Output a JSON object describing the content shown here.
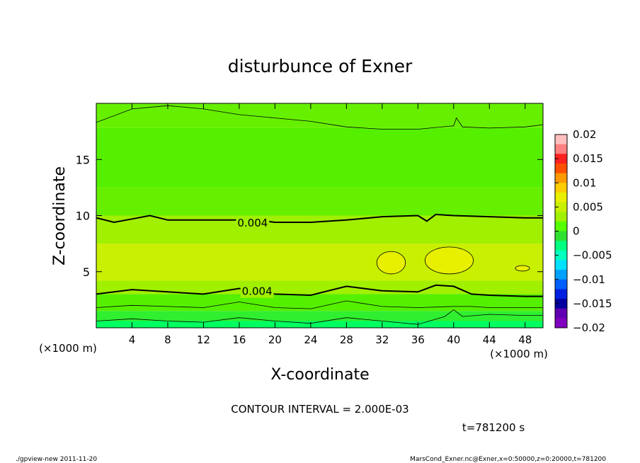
{
  "chart_data": {
    "type": "heatmap",
    "title": "disturbunce of Exner",
    "xlabel": "X-coordinate",
    "ylabel": "Z-coordinate",
    "x_unit_left": "(×1000 m)",
    "x_unit_right": "(×1000 m)",
    "xlim": [
      0,
      50
    ],
    "ylim": [
      0,
      20
    ],
    "x_ticks": [
      4,
      8,
      12,
      16,
      20,
      24,
      28,
      32,
      36,
      40,
      44,
      48
    ],
    "y_ticks": [
      5,
      10,
      15
    ],
    "contour_interval_text": "CONTOUR INTERVAL = 2.000E-03",
    "time_text": "t=781200 s",
    "contour_labels": [
      {
        "text": "0.004",
        "x": 17.5,
        "y": 9.4
      },
      {
        "text": "0.004",
        "x": 18.0,
        "y": 3.3
      }
    ],
    "colorbar": {
      "ticks": [
        "0.02",
        "0.015",
        "0.01",
        "0.005",
        "0",
        "−0.005",
        "−0.01",
        "−0.015",
        "−0.02"
      ],
      "colors": [
        "#ffc0c0",
        "#ff8080",
        "#ff2020",
        "#ff5000",
        "#ff9900",
        "#ffcc00",
        "#e8f000",
        "#c8f000",
        "#a0f000",
        "#55ff00",
        "#30e030",
        "#00ff80",
        "#00ffc0",
        "#00e0ff",
        "#00a0ff",
        "#0060ff",
        "#0020e0",
        "#0000a0",
        "#6000b0",
        "#8000c0"
      ]
    },
    "bands": [
      {
        "z": [
          0,
          0.6
        ],
        "color": "#00ff60"
      },
      {
        "z": [
          0.6,
          1.5
        ],
        "color": "#30ee30"
      },
      {
        "z": [
          1.5,
          3.0
        ],
        "color": "#55f000"
      },
      {
        "z": [
          3.0,
          4.2
        ],
        "color": "#a0f000"
      },
      {
        "z": [
          4.2,
          7.5
        ],
        "color": "#c8f000"
      },
      {
        "z": [
          7.5,
          10.0
        ],
        "color": "#a0f000"
      },
      {
        "z": [
          10.0,
          12.5
        ],
        "color": "#66f000"
      },
      {
        "z": [
          12.5,
          17.8
        ],
        "color": "#55f000"
      },
      {
        "z": [
          17.8,
          20
        ],
        "color": "#66f000"
      }
    ],
    "contours": [
      {
        "level": 0.004,
        "x": [
          0,
          2,
          4,
          6,
          8,
          10,
          12,
          14,
          16,
          18,
          20,
          24,
          28,
          32,
          36,
          37,
          38,
          40,
          44,
          48,
          50
        ],
        "z": [
          9.8,
          9.4,
          9.7,
          10.0,
          9.6,
          9.6,
          9.6,
          9.6,
          9.6,
          9.6,
          9.4,
          9.4,
          9.6,
          9.9,
          10.0,
          9.5,
          10.1,
          10.0,
          9.9,
          9.8,
          9.8
        ],
        "bold": true
      },
      {
        "level": 0.004,
        "x": [
          0,
          4,
          8,
          12,
          16,
          20,
          24,
          28,
          32,
          36,
          38,
          40,
          42,
          44,
          48,
          50
        ],
        "z": [
          3.0,
          3.4,
          3.2,
          3.0,
          3.5,
          3.0,
          2.9,
          3.7,
          3.3,
          3.2,
          3.8,
          3.7,
          3.0,
          2.9,
          2.8,
          2.8
        ],
        "bold": true
      },
      {
        "level": 0.002,
        "x": [
          0,
          4,
          8,
          12,
          16,
          20,
          24,
          28,
          32,
          36,
          40,
          42,
          44,
          48,
          50
        ],
        "z": [
          1.8,
          2.0,
          1.9,
          1.8,
          2.3,
          1.8,
          1.7,
          2.4,
          1.9,
          1.8,
          1.9,
          1.9,
          1.8,
          1.8,
          1.8
        ],
        "bold": false
      },
      {
        "level": 0.0,
        "x": [
          0,
          4,
          8,
          12,
          16,
          20,
          24,
          28,
          32,
          36,
          39,
          40,
          41,
          44,
          48,
          50
        ],
        "z": [
          0.6,
          0.8,
          0.6,
          0.5,
          0.9,
          0.6,
          0.4,
          0.9,
          0.6,
          0.3,
          1.0,
          1.6,
          1.0,
          1.2,
          1.1,
          1.1
        ],
        "bold": false
      },
      {
        "level": 0.002,
        "x": [
          0,
          4,
          8,
          12,
          16,
          20,
          24,
          28,
          32,
          36,
          40,
          40.3,
          41,
          44,
          48,
          50
        ],
        "z": [
          18.3,
          19.5,
          19.8,
          19.5,
          19.0,
          18.7,
          18.4,
          17.9,
          17.7,
          17.7,
          18.0,
          18.7,
          17.9,
          17.8,
          17.9,
          18.1
        ],
        "bold": false
      }
    ],
    "closed_contours": [
      {
        "cx": 33.0,
        "cz": 5.8,
        "rx": 1.6,
        "rz": 1.0
      },
      {
        "cx": 39.5,
        "cz": 6.0,
        "rx": 2.7,
        "rz": 1.2
      },
      {
        "cx": 47.7,
        "cz": 5.3,
        "rx": 0.8,
        "rz": 0.25
      }
    ],
    "lighter_patches": [
      {
        "cx": 12.0,
        "cz": 18.7,
        "rx": 1.5,
        "rz": 0.8,
        "color": "#66f000"
      }
    ]
  },
  "footer": {
    "left": "./gpview-new   2011-11-20",
    "right": "MarsCond_Exner.nc@Exner,x=0:50000,z=0:20000,t=781200"
  }
}
